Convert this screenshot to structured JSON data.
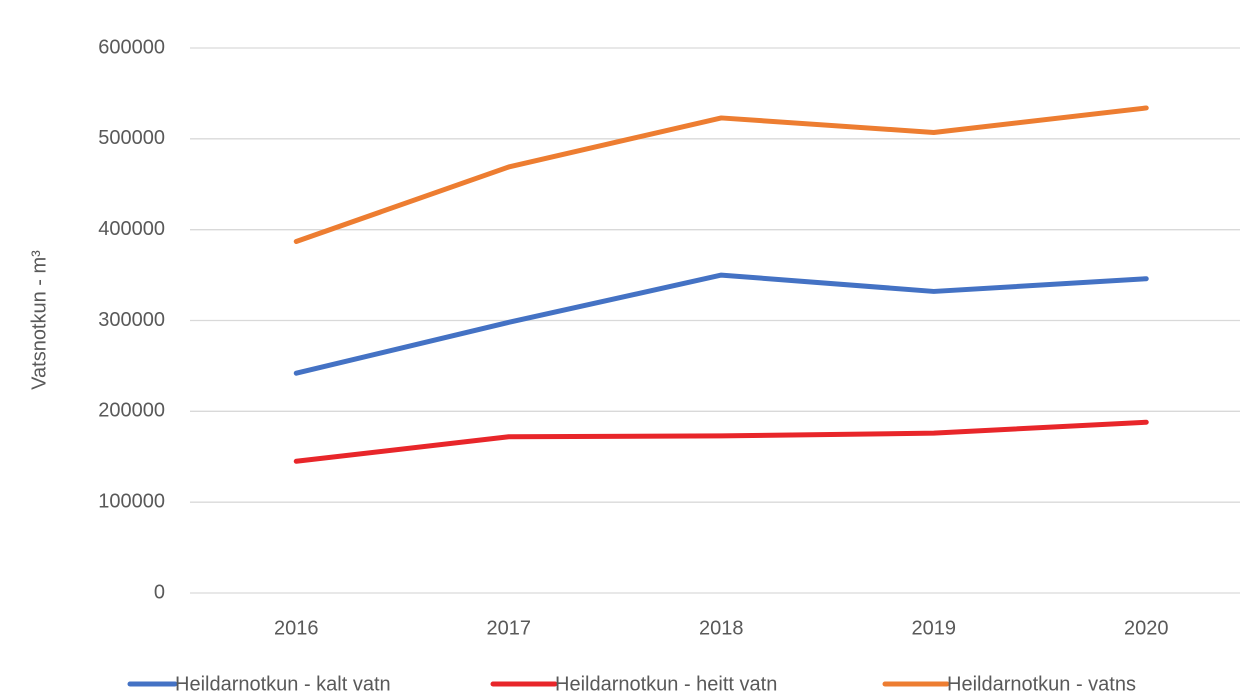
{
  "chart_data": {
    "type": "line",
    "y_label": "Vatsnotkun - m³",
    "categories": [
      "2016",
      "2017",
      "2018",
      "2019",
      "2020"
    ],
    "series": [
      {
        "name": "Heildarnotkun - kalt vatn",
        "color": "#4472c4",
        "values": [
          242000,
          298000,
          350000,
          332000,
          346000
        ]
      },
      {
        "name": "Heildarnotkun - heitt vatn",
        "color": "#e8262a",
        "values": [
          145000,
          172000,
          173000,
          176000,
          188000
        ]
      },
      {
        "name": "Heildarnotkun - vatns",
        "color": "#ed7d31",
        "values": [
          387000,
          469000,
          523000,
          507000,
          534000
        ]
      }
    ],
    "ylim": [
      0,
      600000
    ],
    "yticks": [
      0,
      100000,
      200000,
      300000,
      400000,
      500000,
      600000
    ],
    "grid": true,
    "legend": "bottom"
  }
}
